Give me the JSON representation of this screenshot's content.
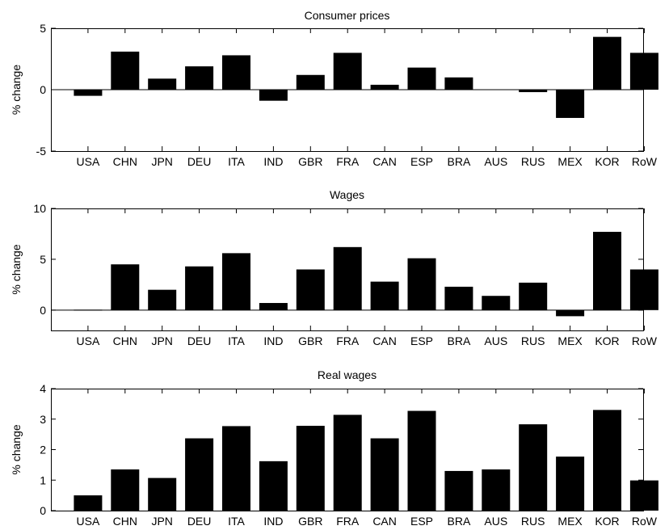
{
  "chart_data": [
    {
      "type": "bar",
      "title": "Consumer prices",
      "ylabel": "% change",
      "xlabel": "",
      "categories": [
        "USA",
        "CHN",
        "JPN",
        "DEU",
        "ITA",
        "IND",
        "GBR",
        "FRA",
        "CAN",
        "ESP",
        "BRA",
        "AUS",
        "RUS",
        "MEX",
        "KOR",
        "RoW"
      ],
      "values": [
        -0.5,
        3.1,
        0.9,
        1.9,
        2.8,
        -0.9,
        1.2,
        3.0,
        0.4,
        1.8,
        1.0,
        -0.05,
        -0.2,
        -2.3,
        4.3,
        3.0
      ],
      "ylim": [
        -5,
        5
      ],
      "yticks": [
        "-5",
        "0",
        "5"
      ],
      "bar_color": "#000000"
    },
    {
      "type": "bar",
      "title": "Wages",
      "ylabel": "% change",
      "xlabel": "",
      "categories": [
        "USA",
        "CHN",
        "JPN",
        "DEU",
        "ITA",
        "IND",
        "GBR",
        "FRA",
        "CAN",
        "ESP",
        "BRA",
        "AUS",
        "RUS",
        "MEX",
        "KOR",
        "RoW"
      ],
      "values": [
        0.0,
        4.5,
        2.0,
        4.3,
        5.6,
        0.7,
        4.0,
        6.2,
        2.8,
        5.1,
        2.3,
        1.4,
        2.7,
        -0.6,
        7.7,
        4.0
      ],
      "ylim": [
        -2,
        10
      ],
      "yticks": [
        "0",
        "5",
        "10"
      ],
      "bar_color": "#000000"
    },
    {
      "type": "bar",
      "title": "Real wages",
      "ylabel": "% change",
      "xlabel": "",
      "categories": [
        "USA",
        "CHN",
        "JPN",
        "DEU",
        "ITA",
        "IND",
        "GBR",
        "FRA",
        "CAN",
        "ESP",
        "BRA",
        "AUS",
        "RUS",
        "MEX",
        "KOR",
        "RoW"
      ],
      "values": [
        0.5,
        1.35,
        1.07,
        2.37,
        2.77,
        1.62,
        2.78,
        3.14,
        2.37,
        3.27,
        1.3,
        1.35,
        2.83,
        1.77,
        3.3,
        0.99
      ],
      "ylim": [
        0,
        4
      ],
      "yticks": [
        "0",
        "1",
        "2",
        "3",
        "4"
      ],
      "bar_color": "#000000"
    }
  ]
}
